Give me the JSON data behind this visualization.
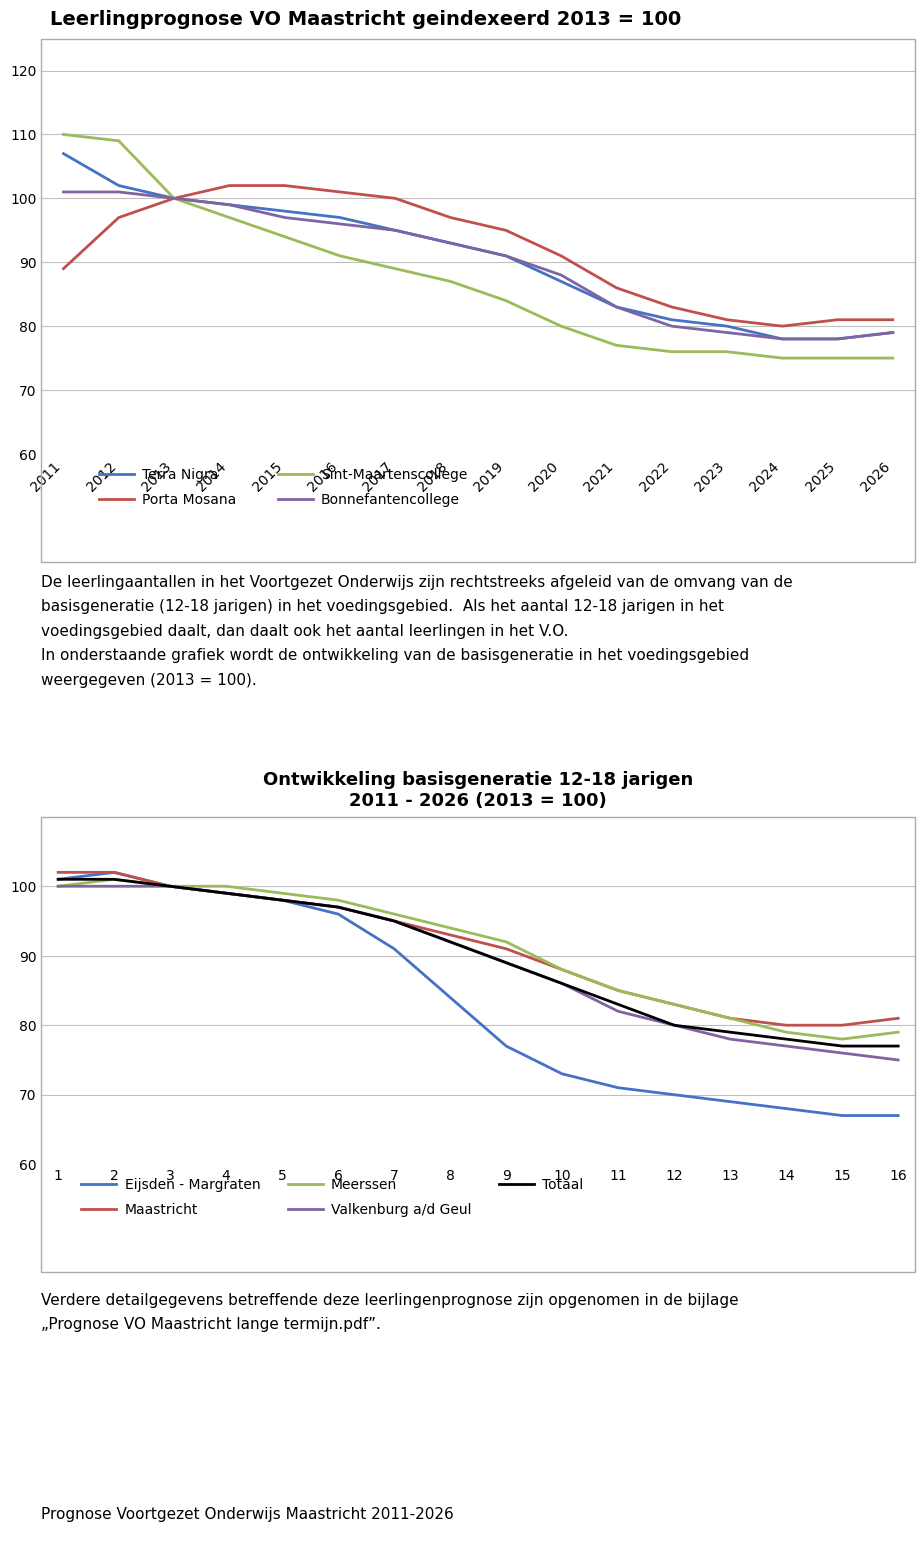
{
  "chart1": {
    "title": "Leerlingprognose VO Maastricht geindexeerd 2013 = 100",
    "years": [
      2011,
      2012,
      2013,
      2014,
      2015,
      2016,
      2017,
      2018,
      2019,
      2020,
      2021,
      2022,
      2023,
      2024,
      2025,
      2026
    ],
    "series": [
      {
        "name": "Terra Nigra",
        "color": "#4472C4",
        "data": [
          107,
          102,
          100,
          99,
          98,
          97,
          95,
          93,
          91,
          87,
          83,
          81,
          80,
          78,
          78,
          79
        ]
      },
      {
        "name": "Porta Mosana",
        "color": "#C0504D",
        "data": [
          89,
          97,
          100,
          102,
          102,
          101,
          100,
          97,
          95,
          91,
          86,
          83,
          81,
          80,
          81,
          81
        ]
      },
      {
        "name": "Sint-Maartenscollege",
        "color": "#9BBB59",
        "data": [
          110,
          109,
          100,
          97,
          94,
          91,
          89,
          87,
          84,
          80,
          77,
          76,
          76,
          75,
          75,
          75
        ]
      },
      {
        "name": "Bonnefantencollege",
        "color": "#8064A2",
        "data": [
          101,
          101,
          100,
          99,
          97,
          96,
          95,
          93,
          91,
          88,
          83,
          80,
          79,
          78,
          78,
          79
        ]
      }
    ],
    "ylim": [
      60,
      125
    ],
    "yticks": [
      60,
      70,
      80,
      90,
      100,
      110,
      120
    ]
  },
  "chart2": {
    "title_line1": "Ontwikkeling basisgeneratie 12-18 jarigen",
    "title_line2": "2011 - 2026 (2013 = 100)",
    "x": [
      1,
      2,
      3,
      4,
      5,
      6,
      7,
      8,
      9,
      10,
      11,
      12,
      13,
      14,
      15,
      16
    ],
    "series": [
      {
        "name": "Eijsden - Margraten",
        "color": "#4472C4",
        "data": [
          101,
          102,
          100,
          99,
          98,
          96,
          91,
          84,
          77,
          73,
          71,
          70,
          69,
          68,
          67,
          67
        ]
      },
      {
        "name": "Maastricht",
        "color": "#C0504D",
        "data": [
          102,
          102,
          100,
          99,
          98,
          97,
          95,
          93,
          91,
          88,
          85,
          83,
          81,
          80,
          80,
          81
        ]
      },
      {
        "name": "Meerssen",
        "color": "#9BBB59",
        "data": [
          100,
          101,
          100,
          100,
          99,
          98,
          96,
          94,
          92,
          88,
          85,
          83,
          81,
          79,
          78,
          79
        ]
      },
      {
        "name": "Valkenburg a/d Geul",
        "color": "#8064A2",
        "data": [
          100,
          100,
          100,
          99,
          98,
          97,
          95,
          92,
          89,
          86,
          82,
          80,
          78,
          77,
          76,
          75
        ]
      },
      {
        "name": "Totaal",
        "color": "#000000",
        "data": [
          101,
          101,
          100,
          99,
          98,
          97,
          95,
          92,
          89,
          86,
          83,
          80,
          79,
          78,
          77,
          77
        ]
      }
    ],
    "ylim": [
      60,
      110
    ],
    "yticks": [
      60,
      70,
      80,
      90,
      100
    ]
  },
  "text1_line1": "De leerlingaantallen in het Voortgezet Onderwijs zijn rechtstreeks afgeleid van de omvang van de",
  "text1_line2": "basisgeneratie (12-18 jarigen) in het voedingsgebied.  Als het aantal 12-18 jarigen in het",
  "text1_line3": "voedingsgebied daalt, dan daalt ook het aantal leerlingen in het V.O.",
  "text1_line4": "In onderstaande grafiek wordt de ontwikkeling van de basisgeneratie in het voedingsgebied",
  "text1_line5": "weergegeven (2013 = 100).",
  "text2_line1": "Verdere detailgegevens betreffende deze leerlingenprognose zijn opgenomen in de bijlage",
  "text2_line2": "„Prognose VO Maastricht lange termijn.pdf”.",
  "footer": "Prognose Voortgezet Onderwijs Maastricht 2011-2026",
  "bg_color": "#FFFFFF",
  "grid_color": "#BFBFBF",
  "border_color": "#AAAAAA",
  "font_title1": 14,
  "font_title2": 13,
  "font_tick": 10,
  "font_legend": 10,
  "font_text": 11,
  "font_footer": 11
}
